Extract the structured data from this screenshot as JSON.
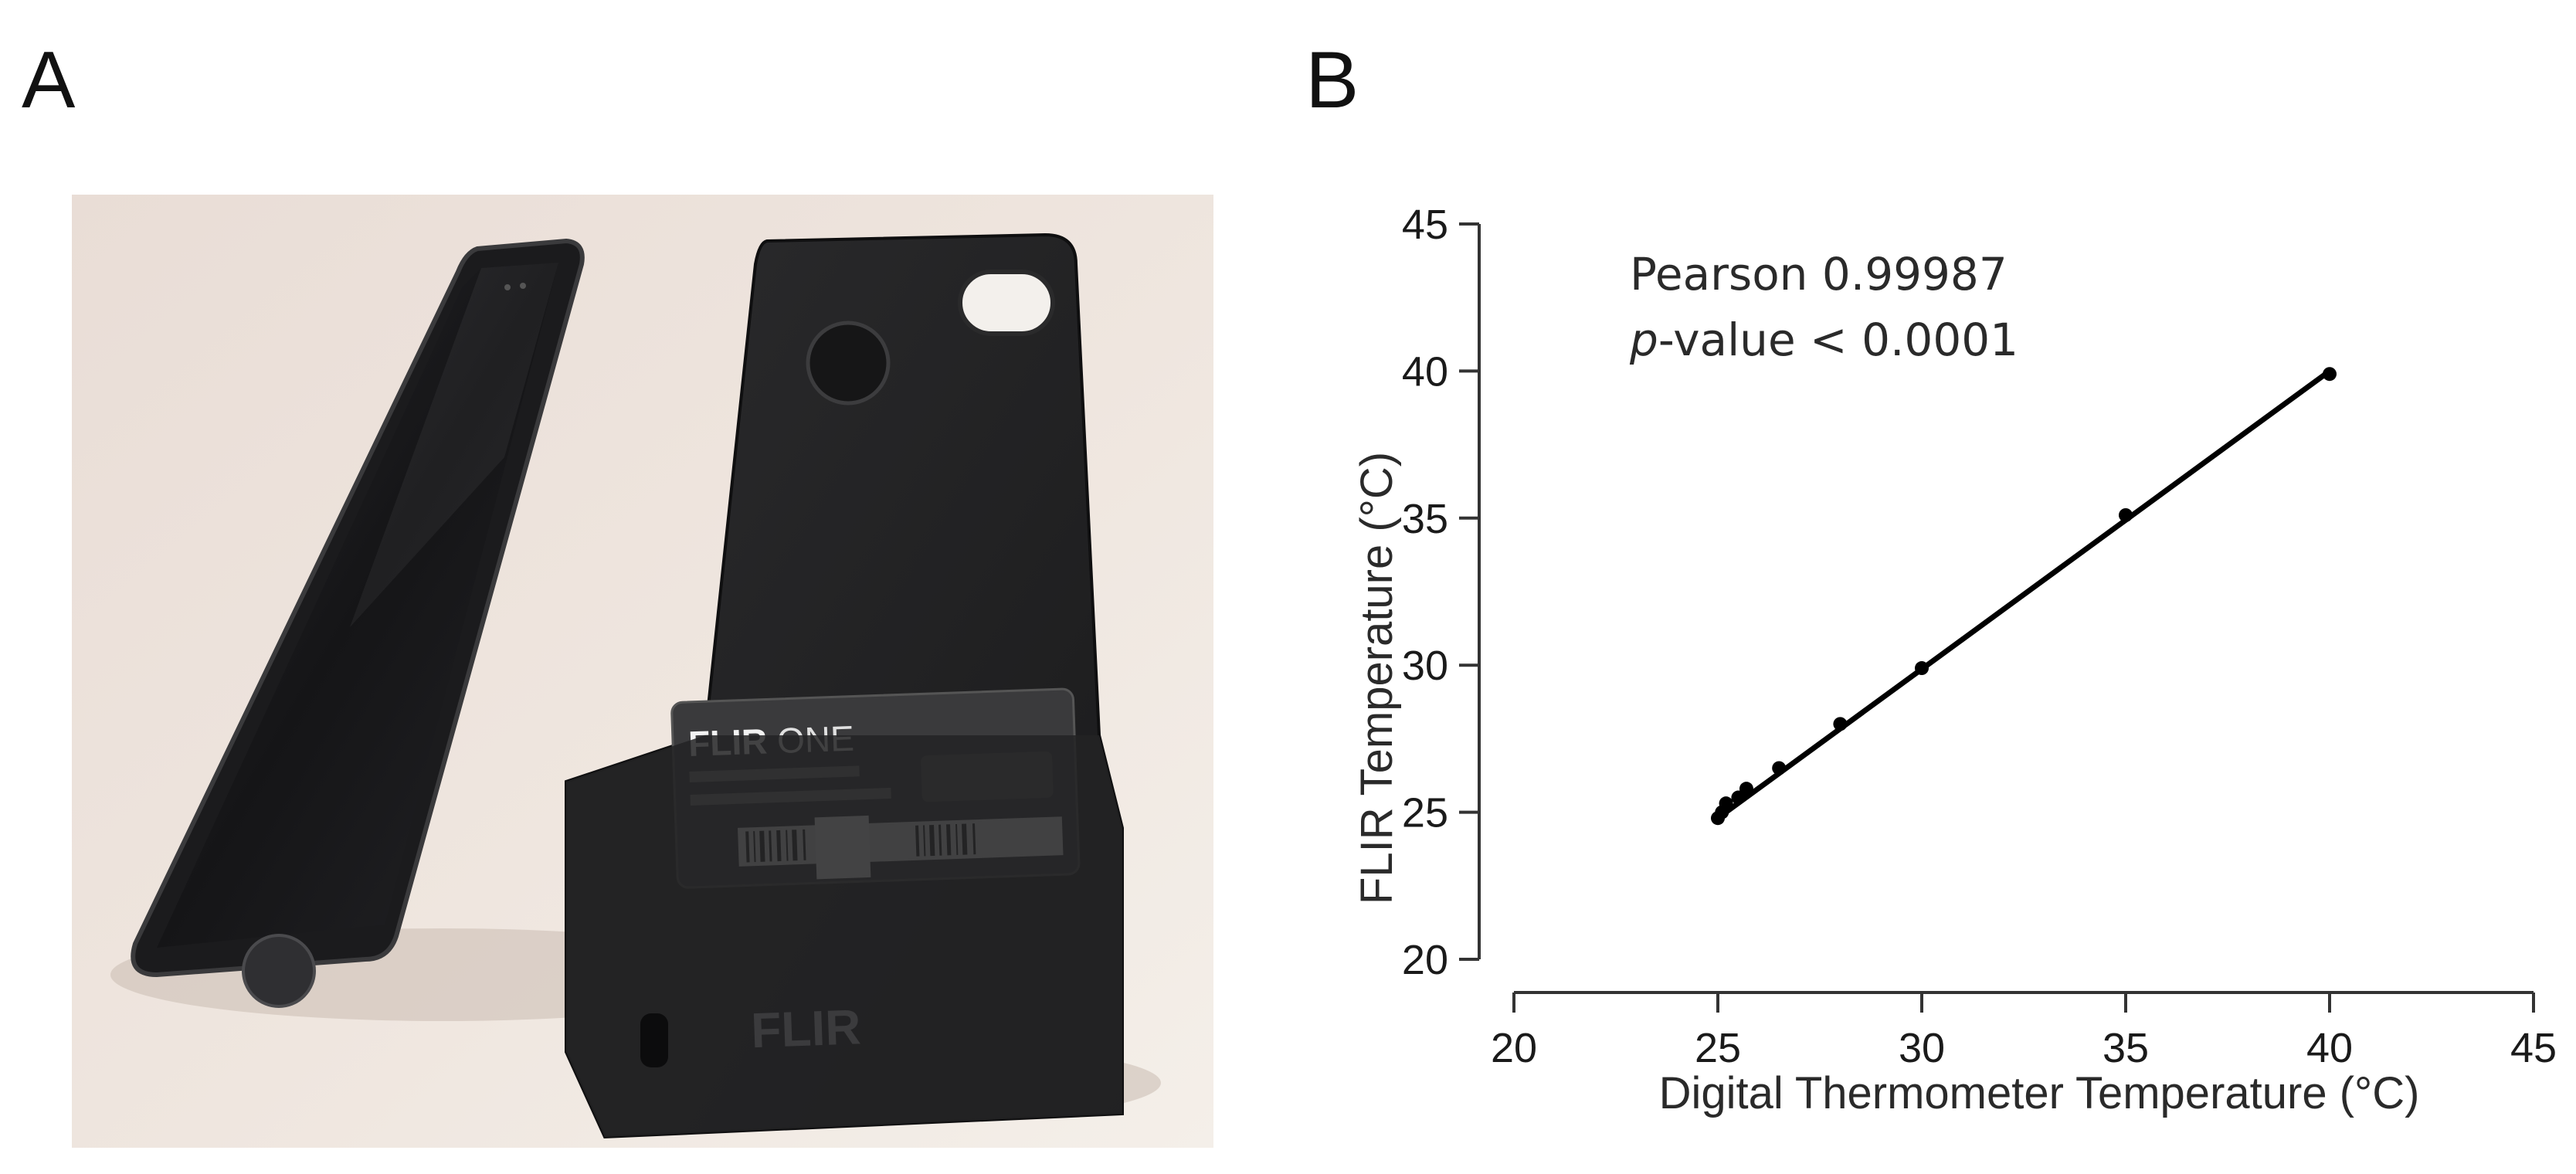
{
  "panels": {
    "a": {
      "letter": "A"
    },
    "b": {
      "letter": "B"
    }
  },
  "photo": {
    "case_label_brand": "FLIR",
    "case_label_product": "ONE",
    "case_bottom_logo": "FLIR"
  },
  "chart_data": {
    "type": "scatter",
    "xlabel": "Digital Thermometer Temperature (°C)",
    "ylabel": "FLIR Temperature (°C)",
    "xlim": [
      20,
      45
    ],
    "ylim": [
      20,
      45
    ],
    "xticks": [
      20,
      25,
      30,
      35,
      40,
      45
    ],
    "yticks": [
      20,
      25,
      30,
      35,
      40,
      45
    ],
    "grid": false,
    "legend": "none",
    "annotations": {
      "pearson": "Pearson 0.99987",
      "pvalue_italic": "p",
      "pvalue_rest": "-value < 0.0001"
    },
    "series": [
      {
        "x": [
          25.0,
          25.1,
          25.2,
          25.5,
          25.7,
          26.5,
          28.0,
          30.0,
          35.0,
          40.0
        ],
        "y": [
          24.8,
          25.0,
          25.3,
          25.5,
          25.8,
          26.5,
          28.0,
          29.9,
          35.1,
          39.9
        ]
      }
    ],
    "fit_line": {
      "x": [
        25.0,
        40.0
      ],
      "y": [
        24.8,
        40.0
      ]
    },
    "colors": {
      "points": "#000000",
      "line": "#000000",
      "axis": "#333333"
    }
  }
}
